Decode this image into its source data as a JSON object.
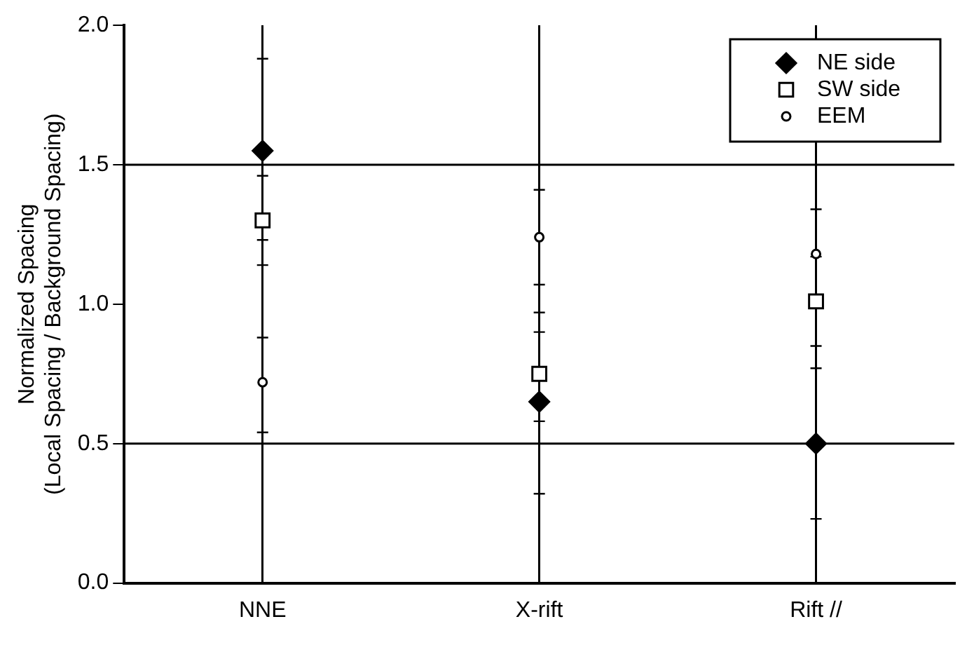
{
  "chart_data": {
    "type": "scatter",
    "ylabel": "Normalized Spacing\n(Local Spacing / Background Spacing)",
    "categories": [
      "NNE",
      "X-rift",
      "Rift //"
    ],
    "series": [
      {
        "name": "NE side",
        "color": "#000000",
        "marker": "diamond",
        "values": [
          1.55,
          0.65,
          0.5
        ],
        "errors": [
          [
            1.23,
            1.88
          ],
          [
            0.32,
            0.9
          ],
          [
            0.23,
            0.77
          ]
        ]
      },
      {
        "name": "SW side",
        "color": "#000000",
        "marker": "square",
        "values": [
          1.3,
          0.75,
          1.01
        ],
        "errors": [
          [
            1.14,
            1.46
          ],
          [
            0.58,
            0.97
          ],
          [
            0.85,
            1.17
          ]
        ]
      },
      {
        "name": "EEM",
        "color": "#000000",
        "marker": "circle",
        "values": [
          0.72,
          1.24,
          1.18
        ],
        "errors": [
          [
            0.54,
            0.88
          ],
          [
            1.07,
            1.41
          ],
          [
            1.02,
            1.34
          ]
        ]
      }
    ],
    "ylim": [
      0,
      2
    ],
    "yticks": [
      {
        "value": 0,
        "label": "0.0"
      },
      {
        "value": 0.5,
        "label": "0.5"
      },
      {
        "value": 1,
        "label": "1.0"
      },
      {
        "value": 1.5,
        "label": "1.5"
      },
      {
        "value": 2,
        "label": "2.0"
      }
    ],
    "ref_lines": [
      {
        "axis": "y",
        "value": 1.5,
        "color": "#000000"
      },
      {
        "axis": "y",
        "value": 0.5,
        "color": "#000000"
      }
    ],
    "grid": "x",
    "legend": "top right"
  }
}
